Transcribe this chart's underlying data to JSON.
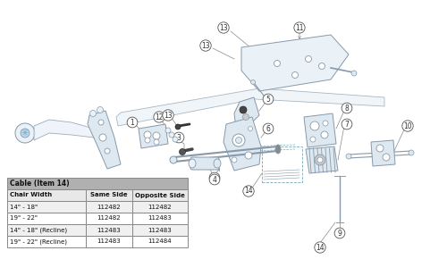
{
  "bg_color": "#ffffff",
  "table_header": "Cable (Item 14)",
  "table_col_headers": [
    "Chair Width",
    "Same Side",
    "Opposite Side"
  ],
  "table_rows": [
    [
      "14\" - 18\"",
      "112482",
      "112482"
    ],
    [
      "19\" - 22\"",
      "112482",
      "112483"
    ],
    [
      "14\" - 18\" (Recline)",
      "112483",
      "112483"
    ],
    [
      "19\" - 22\" (Recline)",
      "112483",
      "112484"
    ]
  ],
  "table_header_bg": "#b0b0b0",
  "table_col_header_bg": "#e8e8e8",
  "table_row_bg_alt": "#f0f0f0",
  "table_row_bg_norm": "#ffffff",
  "table_border_color": "#888888",
  "part_circle_bg": "#ffffff",
  "part_circle_ec": "#555555",
  "diagram_fill": "#dde8f0",
  "diagram_edge": "#8899aa",
  "diagram_light": "#eaf2f8",
  "caster_fill": "#d8e8f4",
  "label_color": "#333333",
  "line_color": "#888888",
  "dashed_color": "#7aaabb"
}
